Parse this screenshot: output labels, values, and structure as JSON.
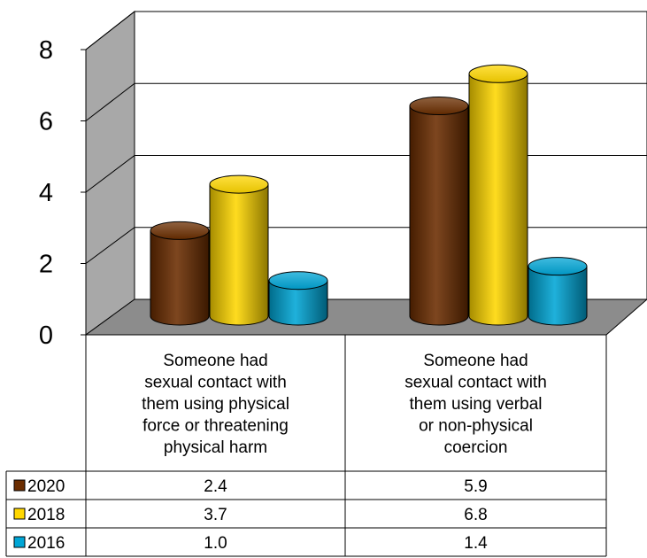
{
  "chart_data": {
    "type": "bar",
    "style": "3d-cylinder",
    "categories": [
      [
        "Someone had",
        "sexual contact with",
        "them using physical",
        "force or threatening",
        "physical harm"
      ],
      [
        "Someone had",
        "sexual contact with",
        "them using verbal",
        "or non-physical",
        "coercion"
      ]
    ],
    "series": [
      {
        "name": "2020",
        "values": [
          2.4,
          5.9
        ],
        "color": "#6b2d00",
        "value_labels": [
          "2.4",
          "5.9"
        ]
      },
      {
        "name": "2018",
        "values": [
          3.7,
          6.8
        ],
        "color": "#ffd700",
        "value_labels": [
          "3.7",
          "6.8"
        ]
      },
      {
        "name": "2016",
        "values": [
          1.0,
          1.4
        ],
        "color": "#00a6d6",
        "value_labels": [
          "1.0",
          "1.4"
        ]
      }
    ],
    "ylim": [
      0,
      8
    ],
    "yticks": [
      "0",
      "2",
      "4",
      "6",
      "8"
    ],
    "grid": true,
    "legend": "data-table"
  }
}
